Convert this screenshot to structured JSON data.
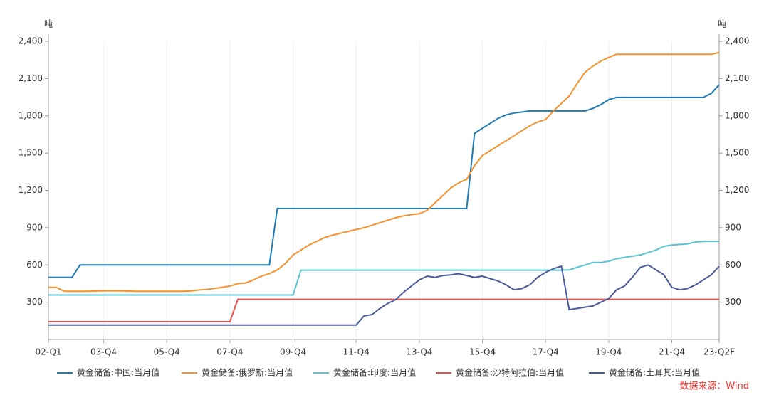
{
  "chart_data": {
    "type": "line",
    "y_unit": "吨",
    "y2_unit": "吨",
    "source": "数据来源：Wind",
    "legend": "bottom",
    "grid": true,
    "categories": [
      "02-Q1",
      null,
      null,
      null,
      null,
      null,
      null,
      "03-Q4",
      null,
      null,
      null,
      null,
      null,
      null,
      null,
      "05-Q4",
      null,
      null,
      null,
      null,
      null,
      null,
      null,
      "07-Q4",
      null,
      null,
      null,
      null,
      null,
      null,
      null,
      "09-Q4",
      null,
      null,
      null,
      null,
      null,
      null,
      null,
      "11-Q4",
      null,
      null,
      null,
      null,
      null,
      null,
      null,
      "13-Q4",
      null,
      null,
      null,
      null,
      null,
      null,
      null,
      "15-Q4",
      null,
      null,
      null,
      null,
      null,
      null,
      null,
      "17-Q4",
      null,
      null,
      null,
      null,
      null,
      null,
      null,
      "19-Q4",
      null,
      null,
      null,
      null,
      null,
      null,
      null,
      "21-Q4",
      null,
      null,
      null,
      null,
      null,
      "23-Q2F"
    ],
    "ylim": [
      0,
      2400
    ],
    "yticks": [
      300,
      600,
      900,
      {
        "value": 1200,
        "label": "1,200"
      },
      {
        "value": 1500,
        "label": "1,500"
      },
      {
        "value": 1800,
        "label": "1,800"
      },
      {
        "value": 2100,
        "label": "2,100"
      },
      {
        "value": 2400,
        "label": "2,400"
      }
    ],
    "y2lim": [
      0,
      2400
    ],
    "y2ticks": [
      300,
      600,
      900,
      {
        "value": 1200,
        "label": "1,200"
      },
      {
        "value": 1500,
        "label": "1,500"
      },
      {
        "value": 1800,
        "label": "1,800"
      },
      {
        "value": 2100,
        "label": "2,100"
      },
      {
        "value": 2400,
        "label": "2,400"
      }
    ],
    "series": [
      {
        "name": "黄金储备:中国:当月值",
        "color": "#1f7bb6",
        "values": [
          500,
          500,
          500,
          500,
          600,
          600,
          600,
          600,
          600,
          600,
          600,
          600,
          600,
          600,
          600,
          600,
          600,
          600,
          600,
          600,
          600,
          600,
          600,
          600,
          600,
          600,
          600,
          600,
          600,
          1054,
          1054,
          1054,
          1054,
          1054,
          1054,
          1054,
          1054,
          1054,
          1054,
          1054,
          1054,
          1054,
          1054,
          1054,
          1054,
          1054,
          1054,
          1054,
          1054,
          1054,
          1054,
          1054,
          1054,
          1054,
          1658,
          1700,
          1740,
          1780,
          1808,
          1823,
          1830,
          1839,
          1839,
          1839,
          1839,
          1839,
          1839,
          1839,
          1839,
          1860,
          1890,
          1930,
          1948,
          1948,
          1948,
          1948,
          1948,
          1948,
          1948,
          1948,
          1948,
          1948,
          1948,
          1948,
          1980,
          2050
        ]
      },
      {
        "name": "黄金储备:俄罗斯:当月值",
        "color": "#f5922f",
        "values": [
          420,
          420,
          388,
          388,
          388,
          388,
          390,
          392,
          392,
          392,
          390,
          388,
          388,
          388,
          388,
          388,
          388,
          388,
          390,
          398,
          402,
          410,
          420,
          430,
          450,
          455,
          480,
          510,
          530,
          560,
          610,
          680,
          720,
          760,
          790,
          820,
          840,
          855,
          870,
          885,
          900,
          920,
          940,
          960,
          980,
          995,
          1005,
          1012,
          1040,
          1100,
          1160,
          1220,
          1260,
          1290,
          1400,
          1480,
          1520,
          1560,
          1600,
          1640,
          1680,
          1720,
          1750,
          1770,
          1840,
          1900,
          1960,
          2060,
          2150,
          2200,
          2240,
          2270,
          2295,
          2295,
          2295,
          2295,
          2295,
          2295,
          2295,
          2295,
          2295,
          2295,
          2295,
          2295,
          2295,
          2310
        ]
      },
      {
        "name": "黄金储备:印度:当月值",
        "color": "#5bc3d0",
        "values": [
          358,
          358,
          358,
          358,
          358,
          358,
          358,
          358,
          358,
          358,
          358,
          358,
          358,
          358,
          358,
          358,
          358,
          358,
          358,
          358,
          358,
          358,
          358,
          358,
          358,
          358,
          358,
          358,
          358,
          358,
          358,
          358,
          558,
          558,
          558,
          558,
          558,
          558,
          558,
          558,
          558,
          558,
          558,
          558,
          558,
          558,
          558,
          558,
          558,
          558,
          558,
          558,
          558,
          558,
          558,
          558,
          558,
          558,
          558,
          558,
          558,
          558,
          558,
          558,
          558,
          558,
          560,
          580,
          600,
          620,
          620,
          630,
          650,
          660,
          670,
          680,
          700,
          720,
          750,
          760,
          765,
          770,
          785,
          790,
          790,
          790
        ]
      },
      {
        "name": "黄金储备:沙特阿拉伯:当月值",
        "color": "#e8524a",
        "values": [
          143,
          143,
          143,
          143,
          143,
          143,
          143,
          143,
          143,
          143,
          143,
          143,
          143,
          143,
          143,
          143,
          143,
          143,
          143,
          143,
          143,
          143,
          143,
          143,
          323,
          323,
          323,
          323,
          323,
          323,
          323,
          323,
          323,
          323,
          323,
          323,
          323,
          323,
          323,
          323,
          323,
          323,
          323,
          323,
          323,
          323,
          323,
          323,
          323,
          323,
          323,
          323,
          323,
          323,
          323,
          323,
          323,
          323,
          323,
          323,
          323,
          323,
          323,
          323,
          323,
          323,
          323,
          323,
          323,
          323,
          323,
          323,
          323,
          323,
          323,
          323,
          323,
          323,
          323,
          323,
          323,
          323,
          323,
          323,
          323,
          323
        ]
      },
      {
        "name": "黄金储备:土耳其:当月值",
        "color": "#4a5a9a",
        "values": [
          116,
          116,
          116,
          116,
          116,
          116,
          116,
          116,
          116,
          116,
          116,
          116,
          116,
          116,
          116,
          116,
          116,
          116,
          116,
          116,
          116,
          116,
          116,
          116,
          116,
          116,
          116,
          116,
          116,
          116,
          116,
          116,
          116,
          116,
          116,
          116,
          116,
          116,
          116,
          116,
          190,
          200,
          250,
          290,
          320,
          380,
          430,
          480,
          510,
          500,
          515,
          520,
          530,
          515,
          500,
          510,
          490,
          470,
          440,
          400,
          410,
          440,
          500,
          540,
          570,
          590,
          240,
          250,
          260,
          270,
          300,
          330,
          400,
          430,
          500,
          580,
          600,
          560,
          520,
          420,
          400,
          410,
          440,
          480,
          520,
          590
        ]
      }
    ]
  }
}
